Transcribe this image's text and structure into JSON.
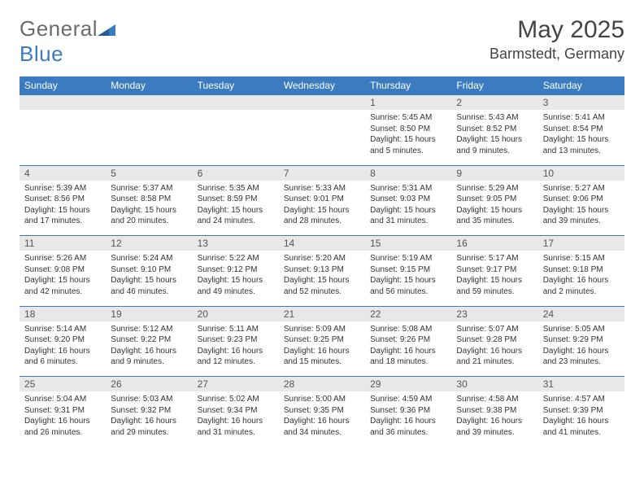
{
  "brand": {
    "name_part1": "General",
    "name_part2": "Blue"
  },
  "title": "May 2025",
  "location": "Barmstedt, Germany",
  "colors": {
    "header_bg": "#3b7bbf",
    "header_fg": "#ffffff",
    "daynum_bg": "#e8e8e8",
    "border": "#3b7bbf",
    "text": "#333333"
  },
  "layout": {
    "columns": 7,
    "rows": 5,
    "cell_width_pct": 14.28,
    "first_weekday_index": 4
  },
  "day_headers": [
    "Sunday",
    "Monday",
    "Tuesday",
    "Wednesday",
    "Thursday",
    "Friday",
    "Saturday"
  ],
  "weeks": [
    [
      null,
      null,
      null,
      null,
      {
        "n": "1",
        "sunrise": "5:45 AM",
        "sunset": "8:50 PM",
        "daylight": "15 hours and 5 minutes."
      },
      {
        "n": "2",
        "sunrise": "5:43 AM",
        "sunset": "8:52 PM",
        "daylight": "15 hours and 9 minutes."
      },
      {
        "n": "3",
        "sunrise": "5:41 AM",
        "sunset": "8:54 PM",
        "daylight": "15 hours and 13 minutes."
      }
    ],
    [
      {
        "n": "4",
        "sunrise": "5:39 AM",
        "sunset": "8:56 PM",
        "daylight": "15 hours and 17 minutes."
      },
      {
        "n": "5",
        "sunrise": "5:37 AM",
        "sunset": "8:58 PM",
        "daylight": "15 hours and 20 minutes."
      },
      {
        "n": "6",
        "sunrise": "5:35 AM",
        "sunset": "8:59 PM",
        "daylight": "15 hours and 24 minutes."
      },
      {
        "n": "7",
        "sunrise": "5:33 AM",
        "sunset": "9:01 PM",
        "daylight": "15 hours and 28 minutes."
      },
      {
        "n": "8",
        "sunrise": "5:31 AM",
        "sunset": "9:03 PM",
        "daylight": "15 hours and 31 minutes."
      },
      {
        "n": "9",
        "sunrise": "5:29 AM",
        "sunset": "9:05 PM",
        "daylight": "15 hours and 35 minutes."
      },
      {
        "n": "10",
        "sunrise": "5:27 AM",
        "sunset": "9:06 PM",
        "daylight": "15 hours and 39 minutes."
      }
    ],
    [
      {
        "n": "11",
        "sunrise": "5:26 AM",
        "sunset": "9:08 PM",
        "daylight": "15 hours and 42 minutes."
      },
      {
        "n": "12",
        "sunrise": "5:24 AM",
        "sunset": "9:10 PM",
        "daylight": "15 hours and 46 minutes."
      },
      {
        "n": "13",
        "sunrise": "5:22 AM",
        "sunset": "9:12 PM",
        "daylight": "15 hours and 49 minutes."
      },
      {
        "n": "14",
        "sunrise": "5:20 AM",
        "sunset": "9:13 PM",
        "daylight": "15 hours and 52 minutes."
      },
      {
        "n": "15",
        "sunrise": "5:19 AM",
        "sunset": "9:15 PM",
        "daylight": "15 hours and 56 minutes."
      },
      {
        "n": "16",
        "sunrise": "5:17 AM",
        "sunset": "9:17 PM",
        "daylight": "15 hours and 59 minutes."
      },
      {
        "n": "17",
        "sunrise": "5:15 AM",
        "sunset": "9:18 PM",
        "daylight": "16 hours and 2 minutes."
      }
    ],
    [
      {
        "n": "18",
        "sunrise": "5:14 AM",
        "sunset": "9:20 PM",
        "daylight": "16 hours and 6 minutes."
      },
      {
        "n": "19",
        "sunrise": "5:12 AM",
        "sunset": "9:22 PM",
        "daylight": "16 hours and 9 minutes."
      },
      {
        "n": "20",
        "sunrise": "5:11 AM",
        "sunset": "9:23 PM",
        "daylight": "16 hours and 12 minutes."
      },
      {
        "n": "21",
        "sunrise": "5:09 AM",
        "sunset": "9:25 PM",
        "daylight": "16 hours and 15 minutes."
      },
      {
        "n": "22",
        "sunrise": "5:08 AM",
        "sunset": "9:26 PM",
        "daylight": "16 hours and 18 minutes."
      },
      {
        "n": "23",
        "sunrise": "5:07 AM",
        "sunset": "9:28 PM",
        "daylight": "16 hours and 21 minutes."
      },
      {
        "n": "24",
        "sunrise": "5:05 AM",
        "sunset": "9:29 PM",
        "daylight": "16 hours and 23 minutes."
      }
    ],
    [
      {
        "n": "25",
        "sunrise": "5:04 AM",
        "sunset": "9:31 PM",
        "daylight": "16 hours and 26 minutes."
      },
      {
        "n": "26",
        "sunrise": "5:03 AM",
        "sunset": "9:32 PM",
        "daylight": "16 hours and 29 minutes."
      },
      {
        "n": "27",
        "sunrise": "5:02 AM",
        "sunset": "9:34 PM",
        "daylight": "16 hours and 31 minutes."
      },
      {
        "n": "28",
        "sunrise": "5:00 AM",
        "sunset": "9:35 PM",
        "daylight": "16 hours and 34 minutes."
      },
      {
        "n": "29",
        "sunrise": "4:59 AM",
        "sunset": "9:36 PM",
        "daylight": "16 hours and 36 minutes."
      },
      {
        "n": "30",
        "sunrise": "4:58 AM",
        "sunset": "9:38 PM",
        "daylight": "16 hours and 39 minutes."
      },
      {
        "n": "31",
        "sunrise": "4:57 AM",
        "sunset": "9:39 PM",
        "daylight": "16 hours and 41 minutes."
      }
    ]
  ],
  "labels": {
    "sunrise": "Sunrise:",
    "sunset": "Sunset:",
    "daylight": "Daylight:"
  }
}
